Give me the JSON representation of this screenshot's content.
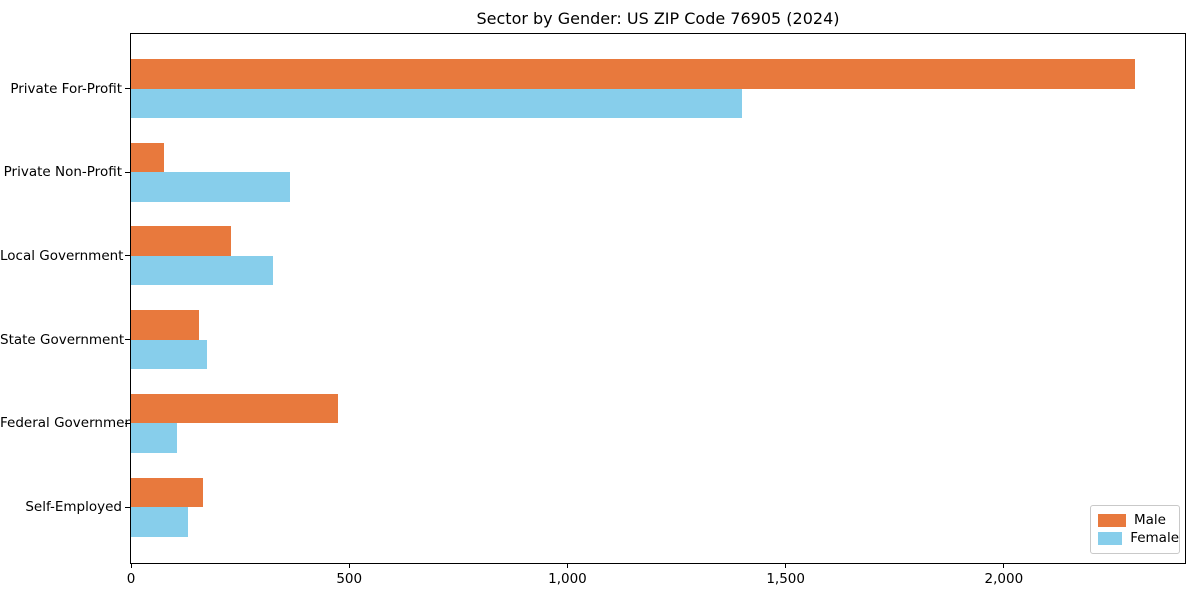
{
  "chart_data": {
    "type": "bar",
    "orientation": "horizontal",
    "title": "Sector by Gender: US ZIP Code 76905 (2024)",
    "categories": [
      "Private For-Profit",
      "Private Non-Profit",
      "Local Government",
      "State Government",
      "Federal Government",
      "Self-Employed"
    ],
    "series": [
      {
        "name": "Male",
        "color": "#E8793D",
        "values": [
          2300,
          75,
          230,
          155,
          475,
          165
        ]
      },
      {
        "name": "Female",
        "color": "#87CEEB",
        "values": [
          1400,
          365,
          325,
          175,
          105,
          130
        ]
      }
    ],
    "xlabel": "",
    "ylabel": "",
    "xlim": [
      0,
      2415
    ],
    "xticks": [
      0,
      500,
      1000,
      1500,
      2000
    ],
    "xtick_labels": [
      "0",
      "500",
      "1,000",
      "1,500",
      "2,000"
    ],
    "grid": false,
    "legend_position": "lower-right",
    "background_color": "#ffffff",
    "frame": true
  }
}
